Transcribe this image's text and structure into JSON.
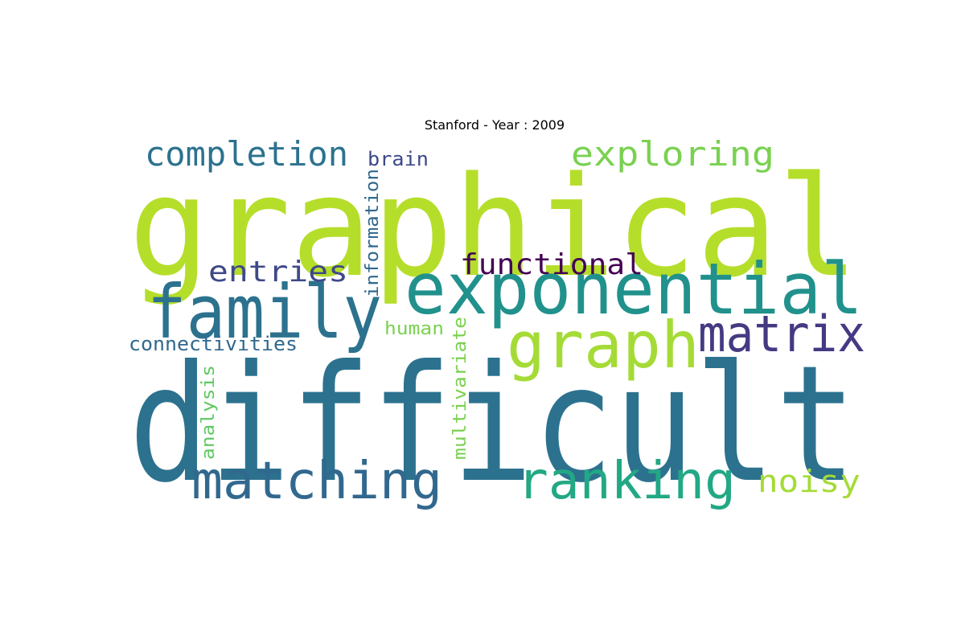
{
  "title": "Stanford - Year : 2009",
  "words": [
    {
      "text": "graphical",
      "color": "#b5de2b"
    },
    {
      "text": "difficult",
      "color": "#2c728e"
    },
    {
      "text": "exponential",
      "color": "#21918c"
    },
    {
      "text": "family",
      "color": "#2c728e"
    },
    {
      "text": "graph",
      "color": "#a5db36"
    },
    {
      "text": "matrix",
      "color": "#443a83"
    },
    {
      "text": "matching",
      "color": "#31688e"
    },
    {
      "text": "ranking",
      "color": "#22a884"
    },
    {
      "text": "completion",
      "color": "#2c728e"
    },
    {
      "text": "exploring",
      "color": "#7ad151"
    },
    {
      "text": "functional",
      "color": "#440154"
    },
    {
      "text": "entries",
      "color": "#3e4989"
    },
    {
      "text": "noisy",
      "color": "#a5db36"
    },
    {
      "text": "brain",
      "color": "#3e4989"
    },
    {
      "text": "information",
      "color": "#31688e"
    },
    {
      "text": "connectivities",
      "color": "#31688e"
    },
    {
      "text": "human",
      "color": "#7ad151"
    },
    {
      "text": "multivariate",
      "color": "#7ad151"
    },
    {
      "text": "analysis",
      "color": "#5ec962"
    }
  ]
}
